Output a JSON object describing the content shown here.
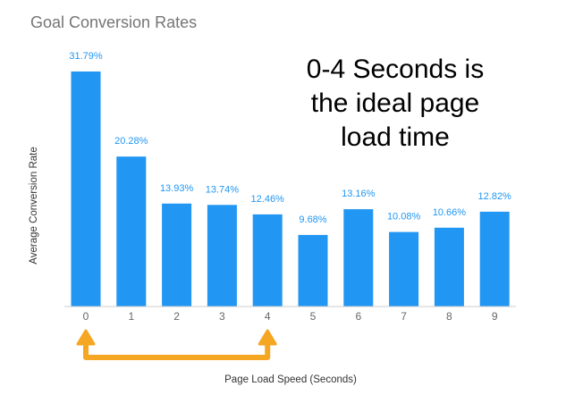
{
  "chart_data": {
    "type": "bar",
    "title": "Goal Conversion Rates",
    "xlabel": "Page Load Speed (Seconds)",
    "ylabel": "Average Conversion Rate",
    "categories": [
      "0",
      "1",
      "2",
      "3",
      "4",
      "5",
      "6",
      "7",
      "8",
      "9"
    ],
    "values": [
      31.79,
      20.28,
      13.93,
      13.74,
      12.46,
      9.68,
      13.16,
      10.08,
      10.66,
      12.82
    ],
    "data_labels": [
      "31.79%",
      "20.28%",
      "13.93%",
      "13.74%",
      "12.46%",
      "9.68%",
      "13.16%",
      "10.08%",
      "10.66%",
      "12.82%"
    ],
    "ylim": [
      0,
      31.79
    ],
    "grid": false,
    "bar_color": "#2196f3",
    "annotation": {
      "lines": [
        "0-4 Seconds is",
        "the ideal page",
        "load time"
      ],
      "bracket_from": "0",
      "bracket_to": "4",
      "bracket_color": "#f5a623"
    }
  }
}
